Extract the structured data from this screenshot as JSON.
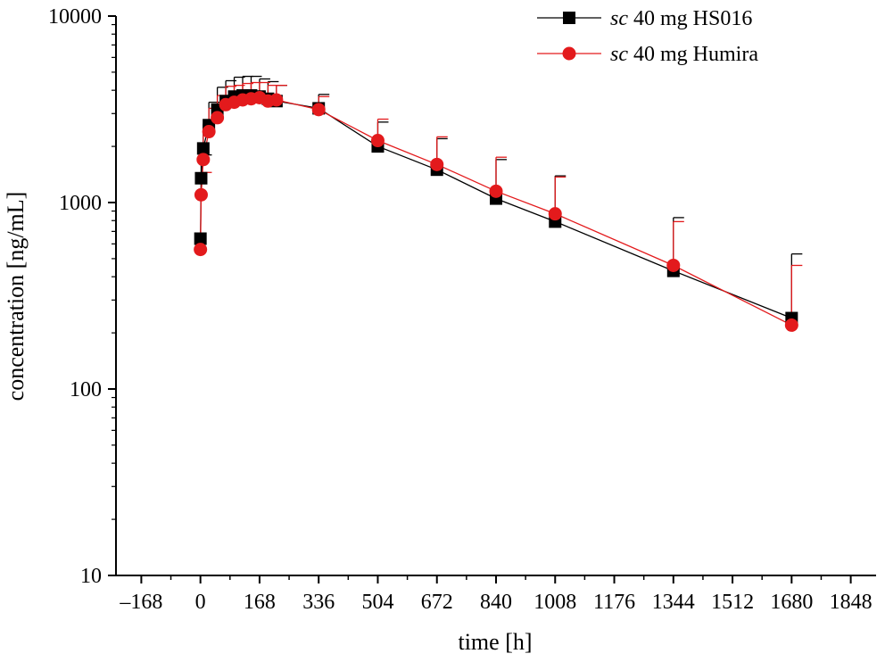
{
  "chart_data": {
    "type": "line",
    "title": "",
    "xlabel": "time [h]",
    "ylabel": "concentration [ng/mL]",
    "xlim": [
      -240,
      1920
    ],
    "ylim": [
      10,
      10000
    ],
    "yscale": "log",
    "xticks": [
      -168,
      0,
      168,
      336,
      504,
      672,
      840,
      1008,
      1176,
      1344,
      1512,
      1680,
      1848
    ],
    "xtick_labels": [
      "–168",
      "0",
      "168",
      "336",
      "504",
      "672",
      "840",
      "1008",
      "1176",
      "1344",
      "1512",
      "1680",
      "1848"
    ],
    "yticks": [
      10,
      100,
      1000,
      10000
    ],
    "ytick_labels": [
      "10",
      "100",
      "1000",
      "10000"
    ],
    "legend_position": "top-right",
    "series": [
      {
        "name": "sc 40 mg HS016",
        "legend_prefix": "sc",
        "legend_rest": " 40 mg HS016",
        "color": "#000000",
        "marker": "square",
        "x": [
          0,
          2,
          8,
          24,
          48,
          72,
          96,
          120,
          144,
          168,
          192,
          216,
          336,
          504,
          672,
          840,
          1008,
          1344,
          1680
        ],
        "y": [
          640,
          1350,
          1950,
          2600,
          3150,
          3500,
          3700,
          3750,
          3750,
          3700,
          3600,
          3500,
          3200,
          2000,
          1500,
          1050,
          790,
          430,
          240
        ],
        "err": [
          0,
          450,
          700,
          850,
          1000,
          1000,
          1000,
          1000,
          1000,
          900,
          850,
          750,
          600,
          700,
          700,
          650,
          600,
          400,
          290
        ]
      },
      {
        "name": "sc 40 mg Humira",
        "legend_prefix": "sc",
        "legend_rest": " 40 mg Humira",
        "color": "#e31a1c",
        "marker": "circle",
        "x": [
          0,
          2,
          8,
          24,
          48,
          72,
          96,
          120,
          144,
          168,
          192,
          216,
          336,
          504,
          672,
          840,
          1008,
          1344,
          1680
        ],
        "y": [
          560,
          1100,
          1700,
          2400,
          2850,
          3350,
          3450,
          3550,
          3600,
          3650,
          3500,
          3550,
          3150,
          2150,
          1600,
          1150,
          870,
          460,
          220
        ],
        "err": [
          0,
          350,
          600,
          800,
          900,
          850,
          800,
          800,
          800,
          750,
          750,
          700,
          550,
          650,
          650,
          600,
          500,
          330,
          240
        ]
      }
    ]
  }
}
